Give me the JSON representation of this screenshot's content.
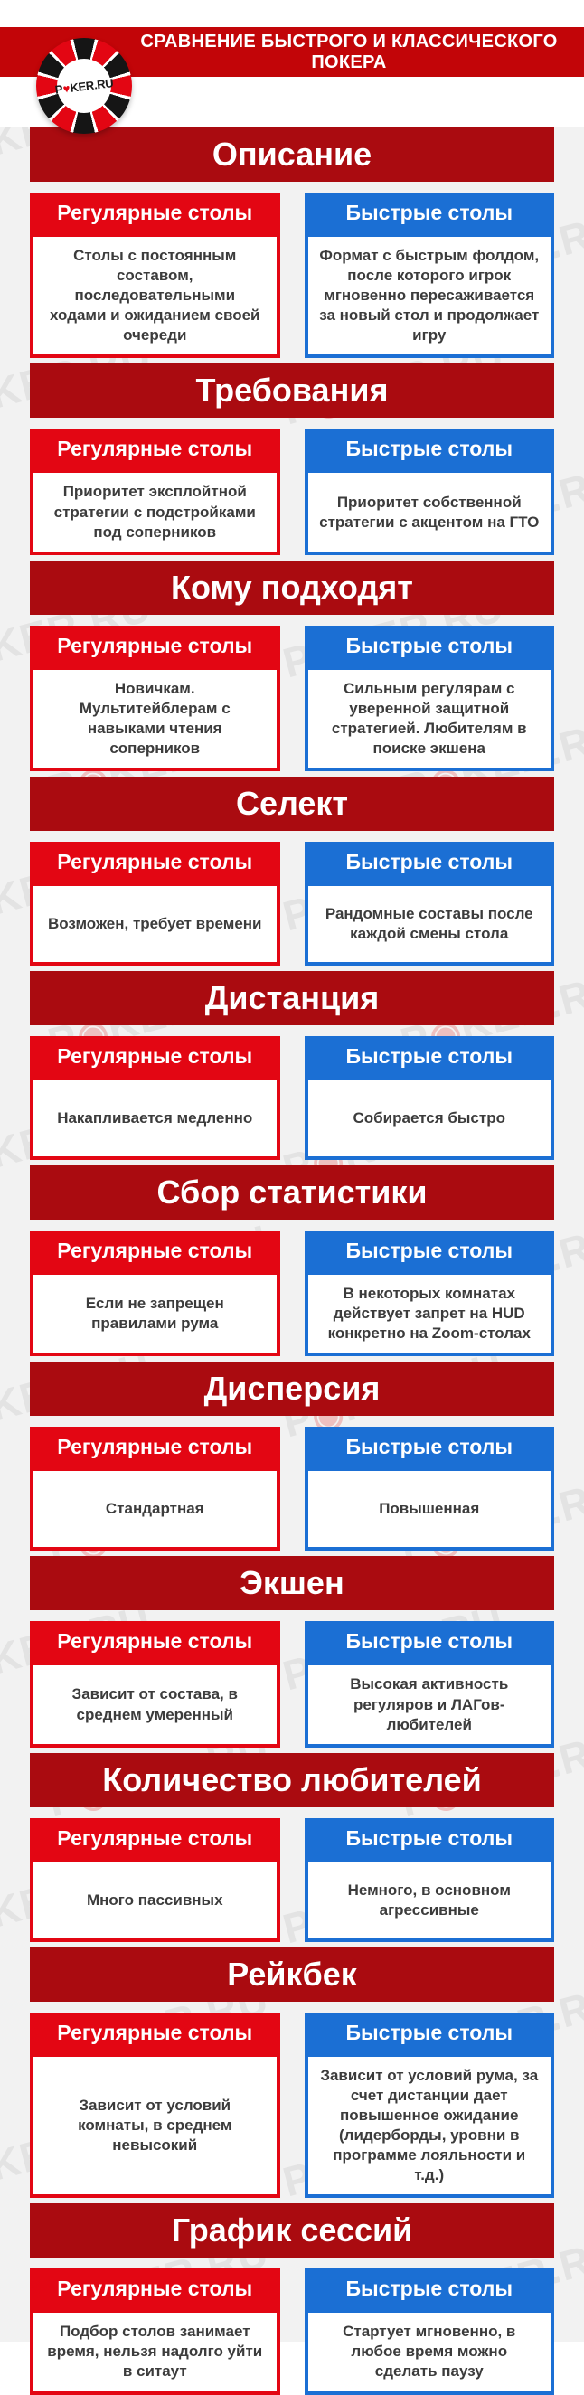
{
  "header": {
    "title": "СРАВНЕНИЕ БЫСТРОГО И КЛАССИЧЕСКОГО ПОКЕРА",
    "logo": {
      "prefix": "P",
      "heart": "♥",
      "suffix": "KER.RU"
    }
  },
  "watermark": {
    "prefix": "P",
    "dot": "◉",
    "suffix": "KER.RU"
  },
  "columns": {
    "regular": "Регулярные столы",
    "fast": "Быстрые столы"
  },
  "colors": {
    "banner_red": "#c20508",
    "section_header_red": "#aa0b10",
    "regular_tables_red": "#e30613",
    "fast_tables_blue": "#1b6fd4",
    "box_text": "#3c3c3c",
    "background_gray": "#f2f2f2"
  },
  "sections": [
    {
      "title": "Описание",
      "regular": "Столы с постоянным составом, последовательными ходами и ожиданием своей очереди",
      "fast": "Формат с быстрым фолдом, после которого игрок мгновенно пересаживается за новый стол и продолжает игру"
    },
    {
      "title": "Требования",
      "regular": "Приоритет эксплойтной стратегии с подстройками под соперников",
      "fast": "Приоритет собственной стратегии с акцентом на ГТО"
    },
    {
      "title": "Кому подходят",
      "regular": "Новичкам. Мультитейблерам с навыками чтения соперников",
      "fast": "Сильным регулярам с уверенной защитной стратегией. Любителям в поиске экшена"
    },
    {
      "title": "Селект",
      "regular": "Возможен, требует времени",
      "fast": "Рандомные составы после каждой смены стола"
    },
    {
      "title": "Дистанция",
      "regular": "Накапливается медленно",
      "fast": "Собирается быстро"
    },
    {
      "title": "Сбор статистики",
      "regular": "Если не запрещен правилами рума",
      "fast": "В некоторых комнатах действует запрет на HUD конкретно на Zoom-столах"
    },
    {
      "title": "Дисперсия",
      "regular": "Стандартная",
      "fast": "Повышенная"
    },
    {
      "title": "Экшен",
      "regular": "Зависит от состава, в среднем умеренный",
      "fast": "Высокая активность регуляров и ЛАГов-любителей"
    },
    {
      "title": "Количество любителей",
      "regular": "Много пассивных",
      "fast": "Немного, в основном агрессивные"
    },
    {
      "title": "Рейкбек",
      "regular": "Зависит от условий комнаты, в среднем невысокий",
      "fast": "Зависит от условий рума, за счет дистанции дает повышенное ожидание (лидерборды, уровни в программе лояльности и т.д.)"
    },
    {
      "title": "График сессий",
      "regular": "Подбор столов занимает время, нельзя надолго уйти в ситаут",
      "fast": "Стартует мгновенно, в любое время можно сделать паузу"
    }
  ]
}
